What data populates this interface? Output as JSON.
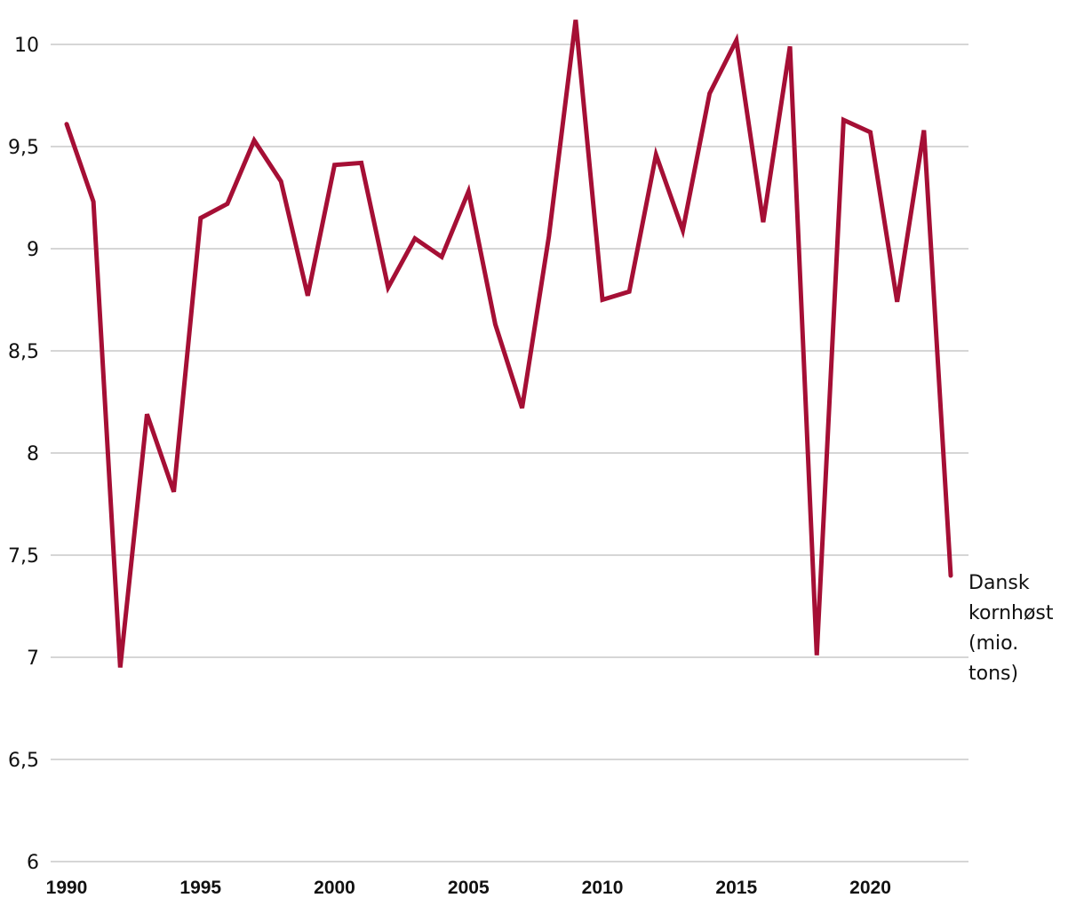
{
  "chart_data": {
    "type": "line",
    "title": "",
    "xlabel": "",
    "ylabel": "",
    "ylim": [
      6,
      10
    ],
    "xlim": [
      1990,
      2023
    ],
    "yticks": [
      {
        "value": 6,
        "label": "6"
      },
      {
        "value": 6.5,
        "label": "6,5"
      },
      {
        "value": 7,
        "label": "7"
      },
      {
        "value": 7.5,
        "label": "7,5"
      },
      {
        "value": 8,
        "label": "8"
      },
      {
        "value": 8.5,
        "label": "8,5"
      },
      {
        "value": 9,
        "label": "9"
      },
      {
        "value": 9.5,
        "label": "9,5"
      },
      {
        "value": 10,
        "label": "10"
      }
    ],
    "xticks": [
      {
        "value": 1990,
        "label": "1990"
      },
      {
        "value": 1995,
        "label": "1995"
      },
      {
        "value": 2000,
        "label": "2000"
      },
      {
        "value": 2005,
        "label": "2005"
      },
      {
        "value": 2010,
        "label": "2010"
      },
      {
        "value": 2015,
        "label": "2015"
      },
      {
        "value": 2020,
        "label": "2020"
      }
    ],
    "x": [
      1990,
      1991,
      1992,
      1993,
      1994,
      1995,
      1996,
      1997,
      1998,
      1999,
      2000,
      2001,
      2002,
      2003,
      2004,
      2005,
      2006,
      2007,
      2008,
      2009,
      2010,
      2011,
      2012,
      2013,
      2014,
      2015,
      2016,
      2017,
      2018,
      2019,
      2020,
      2021,
      2022,
      2023
    ],
    "series": [
      {
        "name": "Dansk kornhøst (mio. tons)",
        "label_lines": [
          "Dansk",
          "kornhøst",
          "(mio.",
          "tons)"
        ],
        "color": "#a50f35",
        "values": [
          9.61,
          9.23,
          6.95,
          8.19,
          7.81,
          9.15,
          9.22,
          9.53,
          9.33,
          8.77,
          9.41,
          9.42,
          8.81,
          9.05,
          8.96,
          9.28,
          8.63,
          8.22,
          9.06,
          10.12,
          8.75,
          8.79,
          9.46,
          9.09,
          9.76,
          10.02,
          9.13,
          9.99,
          7.01,
          9.63,
          9.57,
          8.74,
          9.58,
          7.4
        ]
      }
    ]
  }
}
